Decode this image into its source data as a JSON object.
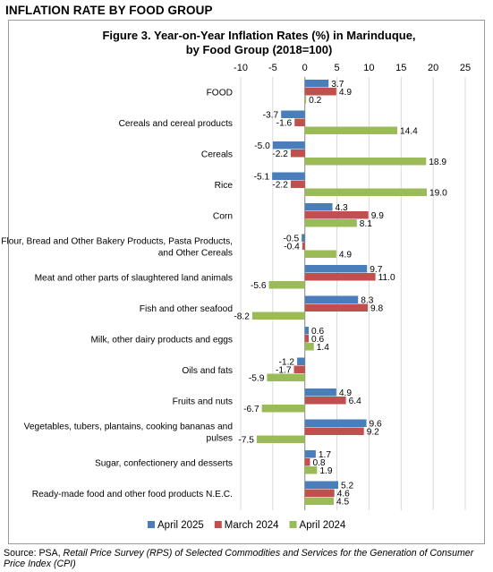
{
  "page_header": "INFLATION RATE BY FOOD GROUP",
  "source": {
    "prefix": "Source: PSA, ",
    "text": "Retail Price Survey (RPS) of Selected Commodities and Services for the Generation of Consumer Price Index (CPI)"
  },
  "colors": {
    "April 2025": "#4a7ebb",
    "March 2024": "#c0504d",
    "April 2024": "#9bbb59",
    "gridline": "#d9d9d9",
    "frame": "#9a9a9a"
  },
  "chart_data": {
    "type": "bar",
    "orientation": "horizontal",
    "title": "Figure 3. Year-on-Year Inflation Rates (%) in Marinduque, by Food Group (2018=100)",
    "title_lines": [
      "Figure 3. Year-on-Year Inflation Rates (%) in Marinduque,",
      "by Food Group (2018=100)"
    ],
    "xlim": [
      -10,
      25
    ],
    "x_ticks": [
      -10,
      -5,
      0,
      5,
      10,
      15,
      20,
      25
    ],
    "x_axis_position": "top",
    "grid": true,
    "legend_position": "bottom",
    "categories": [
      [
        "FOOD"
      ],
      [
        "Cereals and cereal products"
      ],
      [
        "Cereals"
      ],
      [
        "Rice"
      ],
      [
        "Corn"
      ],
      [
        "Flour, Bread and Other Bakery Products, Pasta Products,",
        "and Other Cereals"
      ],
      [
        "Meat and other parts of slaughtered land animals"
      ],
      [
        "Fish and other seafood"
      ],
      [
        "Milk, other dairy products and eggs"
      ],
      [
        "Oils and fats"
      ],
      [
        "Fruits and nuts"
      ],
      [
        "Vegetables, tubers, plantains, cooking bananas and",
        "pulses"
      ],
      [
        "Sugar, confectionery and desserts"
      ],
      [
        "Ready-made food and other food products N.E.C."
      ]
    ],
    "series": [
      {
        "name": "April 2025",
        "values": [
          3.7,
          -3.7,
          -5.0,
          -5.1,
          4.3,
          -0.5,
          9.7,
          8.3,
          0.6,
          -1.2,
          4.9,
          9.6,
          1.7,
          5.2
        ],
        "labels": [
          "3.7",
          "-3.7",
          "-5.0",
          "-5.1",
          "4.3",
          "-0.5",
          "9.7",
          "8.3",
          "0.6",
          "-1.2",
          "4.9",
          "9.6",
          "1.7",
          "5.2"
        ]
      },
      {
        "name": "March 2024",
        "values": [
          4.9,
          -1.6,
          -2.2,
          -2.2,
          9.9,
          -0.4,
          11.0,
          9.8,
          0.6,
          -1.7,
          6.4,
          9.2,
          0.8,
          4.6
        ],
        "labels": [
          "4.9",
          "-1.6",
          "-2.2",
          "-2.2",
          "9.9",
          "-0.4",
          "11.0",
          "9.8",
          "0.6",
          "-1.7",
          "6.4",
          "9.2",
          "0.8",
          "4.6"
        ]
      },
      {
        "name": "April 2024",
        "values": [
          0.2,
          14.4,
          18.9,
          19.0,
          8.1,
          4.9,
          -5.6,
          -8.2,
          1.4,
          -5.9,
          -6.7,
          -7.5,
          1.9,
          4.5
        ],
        "labels": [
          "0.2",
          "14.4",
          "18.9",
          "19.0",
          "8.1",
          "4.9",
          "-5.6",
          "-8.2",
          "1.4",
          "-5.9",
          "-6.7",
          "-7.5",
          "1.9",
          "4.5"
        ]
      }
    ]
  }
}
